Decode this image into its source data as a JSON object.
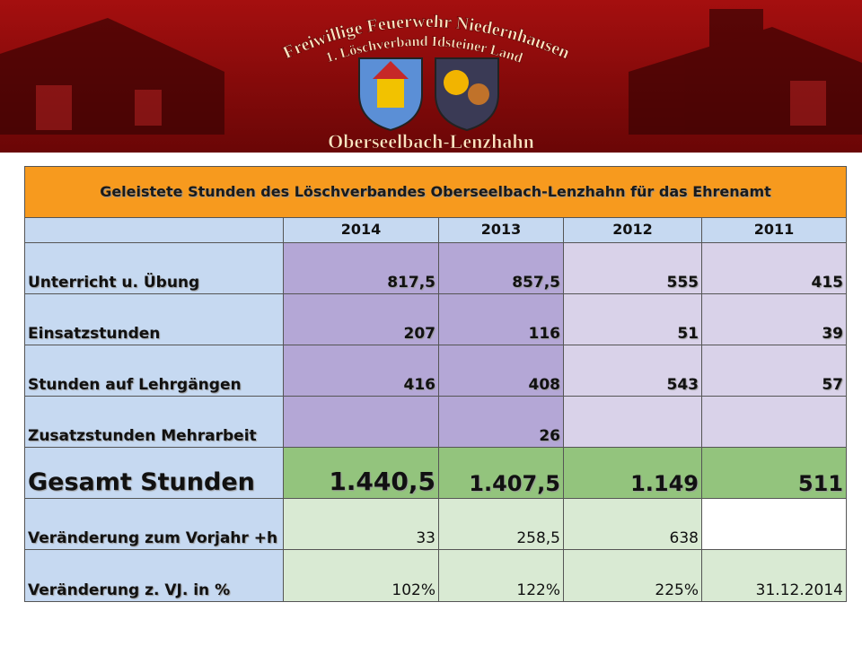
{
  "banner": {
    "line1": "Freiwillige Feuerwehr Niedernhausen",
    "line2": "1. Löschverband Idsteiner Land",
    "place": "Oberseelbach-Lenzhahn"
  },
  "table": {
    "title": "Geleistete Stunden des Löschverbandes Oberseelbach-Lenzhahn für das Ehrenamt",
    "columns": [
      "2014",
      "2013",
      "2012",
      "2011"
    ],
    "rows": [
      {
        "label": "Unterricht u. Übung",
        "values": [
          "817,5",
          "857,5",
          "555",
          "415"
        ]
      },
      {
        "label": "Einsatzstunden",
        "values": [
          "207",
          "116",
          "51",
          "39"
        ]
      },
      {
        "label": "Stunden auf Lehrgängen",
        "values": [
          "416",
          "408",
          "543",
          "57"
        ]
      },
      {
        "label": "Zusatzstunden Mehrarbeit",
        "values": [
          null,
          "26",
          null,
          null
        ]
      },
      {
        "label": "Gesamt Stunden",
        "values": [
          "1.440,5",
          "1.407,5",
          "1.149",
          "511"
        ]
      },
      {
        "label": "Veränderung zum Vorjahr +h",
        "values": [
          "33",
          "258,5",
          "638",
          null
        ]
      },
      {
        "label": "Veränderung z. VJ. in %",
        "values": [
          "102%",
          "122%",
          "225%",
          "31.12.2014"
        ]
      }
    ]
  }
}
